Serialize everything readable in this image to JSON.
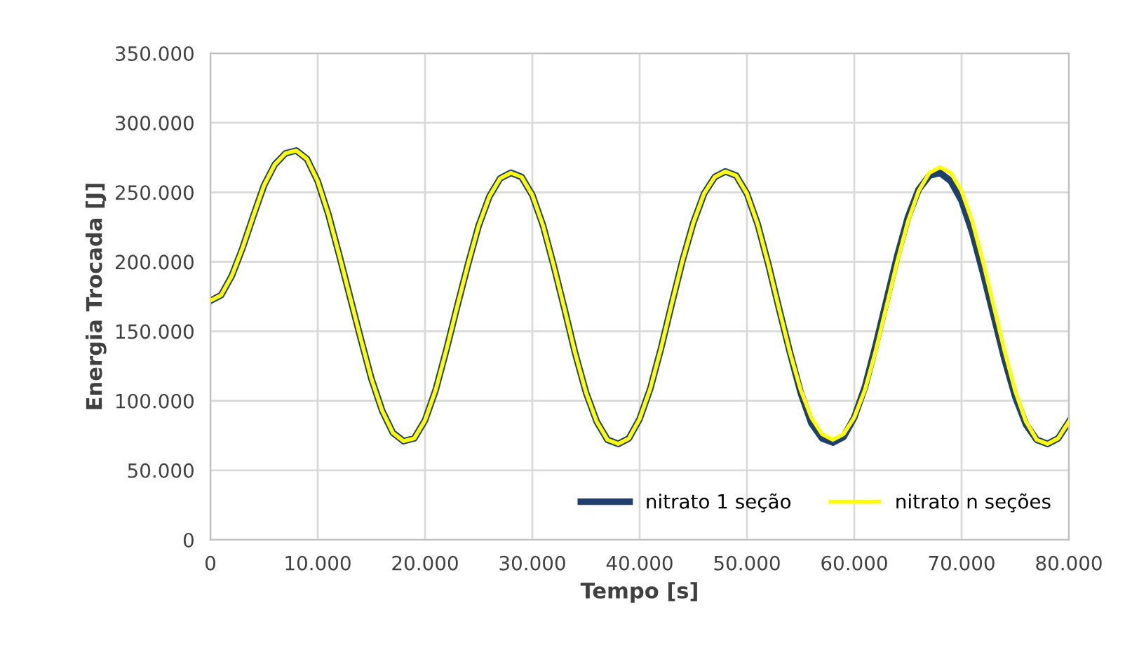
{
  "chart_data": {
    "type": "line",
    "xlabel": "Tempo [s]",
    "ylabel": "Energia Trocada [J]",
    "x": [
      0,
      1000,
      2000,
      3000,
      4000,
      5000,
      6000,
      7000,
      8000,
      9000,
      10000,
      11000,
      12000,
      13000,
      14000,
      15000,
      16000,
      17000,
      18000,
      19000,
      20000,
      21000,
      22000,
      23000,
      24000,
      25000,
      26000,
      27000,
      28000,
      29000,
      30000,
      31000,
      32000,
      33000,
      34000,
      35000,
      36000,
      37000,
      38000,
      39000,
      40000,
      41000,
      42000,
      43000,
      44000,
      45000,
      46000,
      47000,
      48000,
      49000,
      50000,
      51000,
      52000,
      53000,
      54000,
      55000,
      56000,
      57000,
      58000,
      59000,
      60000,
      61000,
      62000,
      63000,
      64000,
      65000,
      66000,
      67000,
      68000,
      69000,
      70000,
      71000,
      72000,
      73000,
      74000,
      75000,
      76000,
      77000,
      78000,
      79000,
      80000
    ],
    "series": [
      {
        "name": "nitrato 1 seção",
        "color": "#1f3f6e",
        "values": [
          172000,
          176000,
          190000,
          210000,
          233000,
          255000,
          270000,
          278000,
          280000,
          274000,
          258000,
          234000,
          205000,
          175000,
          145000,
          116000,
          93000,
          77000,
          71000,
          73000,
          86000,
          108000,
          137000,
          168000,
          198000,
          226000,
          247000,
          260000,
          264000,
          261000,
          248000,
          226000,
          197000,
          166000,
          134000,
          106000,
          85000,
          72000,
          69000,
          73000,
          87000,
          109000,
          138000,
          170000,
          201000,
          228000,
          249000,
          261000,
          265000,
          262000,
          249000,
          227000,
          198000,
          166000,
          135000,
          106000,
          84000,
          73000,
          70000,
          74000,
          88000,
          110000,
          140000,
          172000,
          204000,
          232000,
          252000,
          262000,
          264000,
          258000,
          244000,
          221000,
          192000,
          161000,
          130000,
          103000,
          83000,
          72000,
          69000,
          73000,
          85000
        ]
      },
      {
        "name": "nitrato n seções",
        "color": "#ffff00",
        "values": [
          172000,
          176000,
          190000,
          210000,
          233000,
          255000,
          270000,
          278000,
          280000,
          274000,
          258000,
          234000,
          205000,
          175000,
          145000,
          116000,
          93000,
          77000,
          71000,
          73000,
          86000,
          108000,
          137000,
          168000,
          198000,
          226000,
          247000,
          260000,
          264000,
          261000,
          248000,
          226000,
          197000,
          166000,
          134000,
          106000,
          85000,
          72000,
          69000,
          73000,
          87000,
          109000,
          138000,
          170000,
          201000,
          228000,
          249000,
          261000,
          265000,
          262000,
          249000,
          227000,
          198000,
          166000,
          135000,
          108000,
          88000,
          76000,
          72000,
          76000,
          88000,
          108000,
          136000,
          168000,
          200000,
          229000,
          251000,
          264000,
          268000,
          264000,
          251000,
          229000,
          200000,
          168000,
          136000,
          107000,
          85000,
          72000,
          69000,
          73000,
          85000
        ]
      }
    ],
    "xlim": [
      0,
      80000
    ],
    "xticks": [
      0,
      {
        "value": 10000,
        "label": "10.000"
      },
      {
        "value": 20000,
        "label": "20.000"
      },
      {
        "value": 30000,
        "label": "30.000"
      },
      {
        "value": 40000,
        "label": "40.000"
      },
      {
        "value": 50000,
        "label": "50.000"
      },
      {
        "value": 60000,
        "label": "60.000"
      },
      {
        "value": 70000,
        "label": "70.000"
      },
      {
        "value": 80000,
        "label": "80.000"
      }
    ],
    "ylim": [
      0,
      350000
    ],
    "yticks": [
      0,
      {
        "value": 50000,
        "label": "50.000"
      },
      {
        "value": 100000,
        "label": "100.000"
      },
      {
        "value": 150000,
        "label": "150.000"
      },
      {
        "value": 200000,
        "label": "200.000"
      },
      {
        "value": 250000,
        "label": "250.000"
      },
      {
        "value": 300000,
        "label": "300.000"
      },
      {
        "value": 350000,
        "label": "350.000"
      }
    ],
    "grid": true,
    "legend": "bottom right",
    "marker": "none",
    "line_style": "solid"
  }
}
